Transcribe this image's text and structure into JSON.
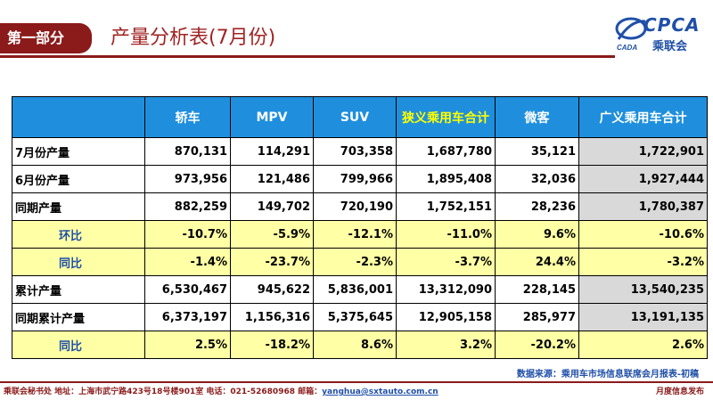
{
  "header": {
    "section_label": "第一部分",
    "title": "产量分析表(7月份)",
    "logo_text": "CPCA",
    "logo_sub": "乘联会",
    "logo_mark": "CADA"
  },
  "colors": {
    "brand_red": "#8b1a1a",
    "header_blue": "#1f8fdd",
    "highlight_yellow": "#ffffa6",
    "grey_cell": "#d9d9d9"
  },
  "table": {
    "columns": [
      "",
      "轿车",
      "MPV",
      "SUV",
      "狭义乘用车合计",
      "微客",
      "广义乘用车合计"
    ],
    "rows": [
      {
        "label": "7月份产量",
        "values": [
          "870,131",
          "114,291",
          "703,358",
          "1,687,780",
          "35,121",
          "1,722,901"
        ]
      },
      {
        "label": "6月份产量",
        "values": [
          "973,956",
          "121,486",
          "799,966",
          "1,895,408",
          "32,036",
          "1,927,444"
        ]
      },
      {
        "label": "同期产量",
        "values": [
          "882,259",
          "149,702",
          "720,190",
          "1,752,151",
          "28,236",
          "1,780,387"
        ]
      },
      {
        "label": "环比",
        "values": [
          "-10.7%",
          "-5.9%",
          "-12.1%",
          "-11.0%",
          "9.6%",
          "-10.6%"
        ]
      },
      {
        "label": "同比",
        "values": [
          "-1.4%",
          "-23.7%",
          "-2.3%",
          "-3.7%",
          "24.4%",
          "-3.2%"
        ]
      },
      {
        "label": "累计产量",
        "values": [
          "6,530,467",
          "945,622",
          "5,836,001",
          "13,312,090",
          "228,145",
          "13,540,235"
        ]
      },
      {
        "label": "同期累计产量",
        "values": [
          "6,373,197",
          "1,156,316",
          "5,375,645",
          "12,905,158",
          "285,977",
          "13,191,135"
        ]
      },
      {
        "label": "同比",
        "values": [
          "2.5%",
          "-18.2%",
          "8.6%",
          "3.2%",
          "-20.2%",
          "2.6%"
        ]
      }
    ]
  },
  "footer": {
    "source": "数据来源：乘用车市场信息联席会月报表-初稿",
    "contact_prefix": "乘联会秘书处   地址：上海市武宁路423号18号楼901室   电话：021-52680968   邮箱：",
    "email": "yanghua@sxtauto.com.cn",
    "right": "月度信息发布"
  }
}
